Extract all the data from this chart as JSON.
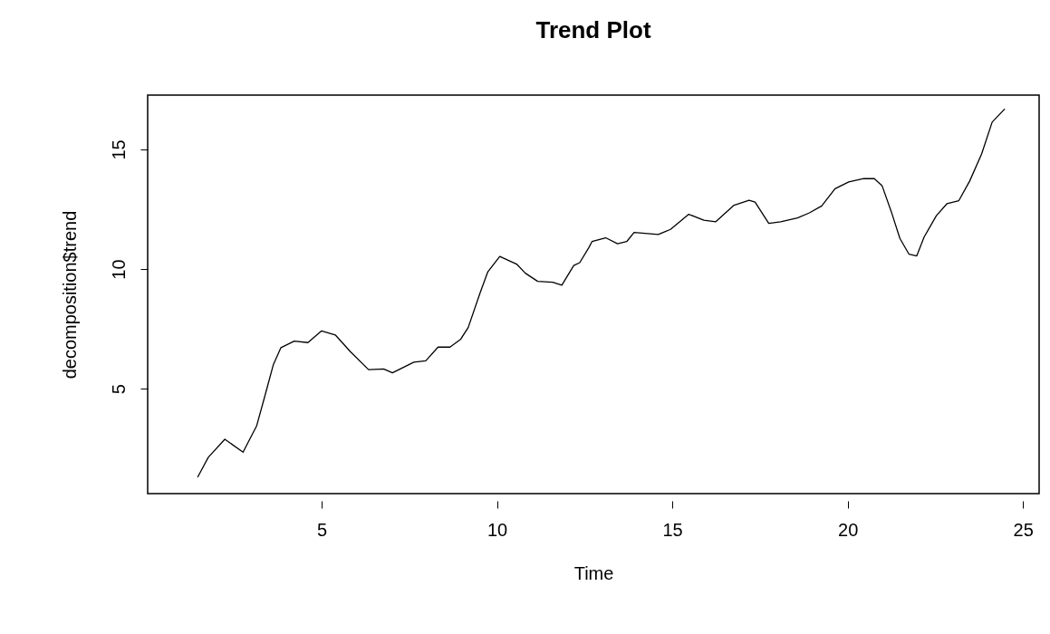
{
  "chart_data": {
    "type": "line",
    "title": "Trend Plot",
    "xlabel": "Time",
    "ylabel": "decomposition$trend",
    "xlim": [
      0.04,
      25.46
    ],
    "ylim": [
      0.62,
      17.27
    ],
    "xticks": [
      5,
      10,
      15,
      20,
      25
    ],
    "yticks": [
      5,
      10,
      15
    ],
    "line_style": "solid",
    "series": [
      {
        "color": "#000000",
        "x": [
          1.47,
          1.77,
          2.24,
          2.76,
          3.15,
          3.41,
          3.62,
          3.84,
          4.22,
          4.61,
          5.0,
          5.39,
          5.82,
          6.34,
          6.77,
          7.02,
          7.63,
          7.97,
          8.32,
          8.66,
          8.96,
          9.18,
          9.52,
          9.74,
          10.08,
          10.56,
          10.81,
          11.16,
          11.59,
          11.85,
          12.19,
          12.36,
          12.62,
          12.71,
          13.1,
          13.44,
          13.7,
          13.91,
          14.6,
          14.95,
          15.47,
          15.9,
          16.24,
          16.76,
          17.19,
          17.36,
          17.75,
          18.09,
          18.57,
          18.91,
          19.26,
          19.64,
          20.03,
          20.46,
          20.76,
          20.98,
          21.24,
          21.49,
          21.75,
          21.97,
          22.18,
          22.53,
          22.83,
          23.17,
          23.48,
          23.82,
          24.12,
          24.47
        ],
        "values": [
          1.32,
          2.14,
          2.89,
          2.35,
          3.46,
          4.85,
          5.99,
          6.72,
          6.99,
          6.93,
          7.42,
          7.25,
          6.55,
          5.8,
          5.83,
          5.67,
          6.11,
          6.17,
          6.74,
          6.74,
          7.06,
          7.56,
          9.01,
          9.89,
          10.53,
          10.21,
          9.83,
          9.49,
          9.45,
          9.33,
          10.15,
          10.27,
          10.9,
          11.15,
          11.31,
          11.06,
          11.15,
          11.53,
          11.45,
          11.66,
          12.29,
          12.04,
          11.98,
          12.67,
          12.88,
          12.8,
          11.91,
          11.98,
          12.14,
          12.35,
          12.64,
          13.36,
          13.64,
          13.78,
          13.78,
          13.49,
          12.42,
          11.28,
          10.62,
          10.55,
          11.34,
          12.23,
          12.73,
          12.86,
          13.68,
          14.81,
          16.14,
          16.68
        ]
      }
    ]
  }
}
